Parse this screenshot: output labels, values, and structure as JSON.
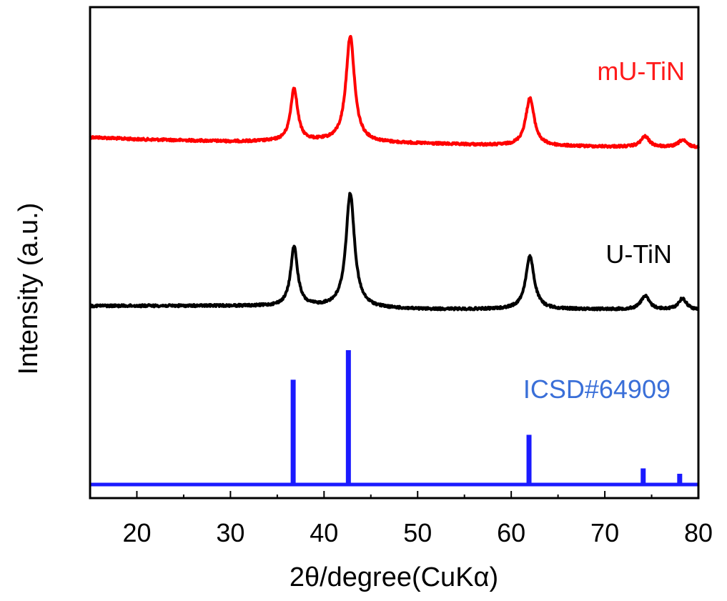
{
  "chart_data": {
    "type": "line",
    "title": "",
    "xlabel": "2θ/degree(CuKα)",
    "ylabel": "Intensity (a.u.)",
    "xlim": [
      15,
      80
    ],
    "xticks": [
      20,
      30,
      40,
      50,
      60,
      70,
      80
    ],
    "x_tick_labels": [
      "20",
      "30",
      "40",
      "50",
      "60",
      "70",
      "80"
    ],
    "y_ticks_shown": false,
    "grid": false,
    "legend": "inline labels",
    "series": [
      {
        "name": "mU-TiN",
        "color": "#ff0000",
        "kind": "pattern",
        "baseline": [
          [
            15,
            0.14
          ],
          [
            20,
            0.12
          ],
          [
            30,
            0.1
          ],
          [
            35,
            0.1
          ],
          [
            40,
            0.1
          ],
          [
            50,
            0.08
          ],
          [
            60,
            0.06
          ],
          [
            70,
            0.05
          ],
          [
            80,
            0.04
          ]
        ],
        "peaks": [
          {
            "x": 36.8,
            "height": 0.5,
            "width": 0.45
          },
          {
            "x": 42.8,
            "height": 1.0,
            "width": 0.55
          },
          {
            "x": 62.0,
            "height": 0.45,
            "width": 0.55
          },
          {
            "x": 74.3,
            "height": 0.1,
            "width": 0.55
          },
          {
            "x": 78.3,
            "height": 0.07,
            "width": 0.55
          }
        ]
      },
      {
        "name": "U-TiN",
        "color": "#000000",
        "kind": "pattern",
        "baseline": [
          [
            15,
            0.1
          ],
          [
            30,
            0.1
          ],
          [
            40,
            0.09
          ],
          [
            50,
            0.07
          ],
          [
            60,
            0.07
          ],
          [
            70,
            0.07
          ],
          [
            80,
            0.06
          ]
        ],
        "peaks": [
          {
            "x": 36.8,
            "height": 0.52,
            "width": 0.45
          },
          {
            "x": 42.8,
            "height": 1.0,
            "width": 0.55
          },
          {
            "x": 62.0,
            "height": 0.46,
            "width": 0.55
          },
          {
            "x": 74.3,
            "height": 0.12,
            "width": 0.55
          },
          {
            "x": 78.3,
            "height": 0.1,
            "width": 0.55
          }
        ]
      },
      {
        "name": "ICSD#64909",
        "color": "#1a1aff",
        "label_color": "#3a6fd8",
        "kind": "sticks",
        "sticks": [
          {
            "x": 36.7,
            "intensity": 0.78
          },
          {
            "x": 42.6,
            "intensity": 1.0
          },
          {
            "x": 61.9,
            "intensity": 0.37
          },
          {
            "x": 74.1,
            "intensity": 0.12
          },
          {
            "x": 78.0,
            "intensity": 0.08
          }
        ]
      }
    ]
  }
}
